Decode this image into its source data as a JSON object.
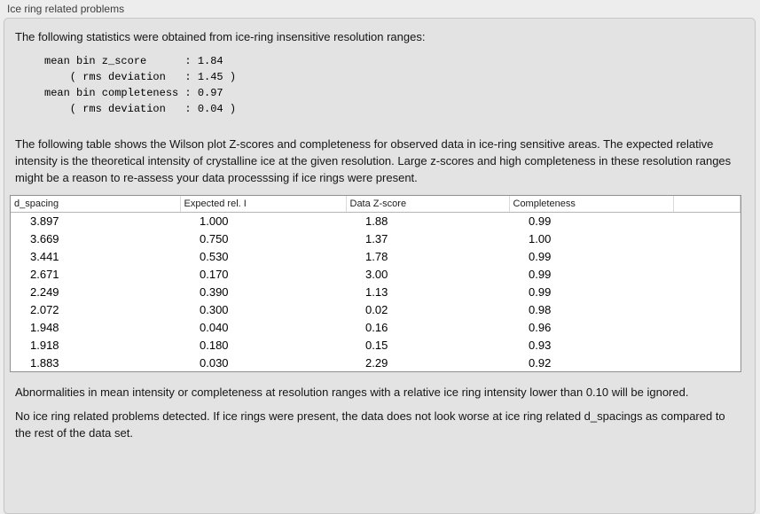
{
  "panel": {
    "title": "Ice ring related problems",
    "intro": "The following statistics were obtained from ice-ring insensitive resolution ranges:",
    "stats_block": "mean bin z_score      : 1.84\n    ( rms deviation   : 1.45 )\nmean bin completeness : 0.97\n    ( rms deviation   : 0.04 )",
    "stats": {
      "mean_bin_z_score": "1.84",
      "z_score_rms_deviation": "1.45",
      "mean_bin_completeness": "0.97",
      "completeness_rms_deviation": "0.04"
    },
    "description": "The following table shows the Wilson plot Z-scores and completeness for observed data in ice-ring sensitive areas. The expected relative intensity is the theoretical intensity of crystalline ice at the given resolution. Large z-scores and high completeness in these resolution ranges might be a reason to re-assess your data processsing if ice rings were present.",
    "note_ignore": "Abnormalities in mean intensity or completeness at resolution ranges with a relative ice ring intensity lower than 0.10 will be ignored.",
    "conclusion": "No ice ring related problems detected. If ice rings were present, the data does not look worse at ice ring related d_spacings as compared to the rest of the data set."
  },
  "table": {
    "columns": [
      "d_spacing",
      "Expected rel. I",
      "Data Z-score",
      "Completeness"
    ],
    "rows": [
      [
        "3.897",
        "1.000",
        "1.88",
        "0.99"
      ],
      [
        "3.669",
        "0.750",
        "1.37",
        "1.00"
      ],
      [
        "3.441",
        "0.530",
        "1.78",
        "0.99"
      ],
      [
        "2.671",
        "0.170",
        "3.00",
        "0.99"
      ],
      [
        "2.249",
        "0.390",
        "1.13",
        "0.99"
      ],
      [
        "2.072",
        "0.300",
        "0.02",
        "0.98"
      ],
      [
        "1.948",
        "0.040",
        "0.16",
        "0.96"
      ],
      [
        "1.918",
        "0.180",
        "0.15",
        "0.93"
      ],
      [
        "1.883",
        "0.030",
        "2.29",
        "0.92"
      ]
    ]
  },
  "colors": {
    "outer_background": "#ededed",
    "panel_background": "#e3e3e3",
    "panel_border": "#c6c6c6",
    "table_background": "#ffffff",
    "table_border": "#8f8f8f",
    "text": "#151515"
  }
}
